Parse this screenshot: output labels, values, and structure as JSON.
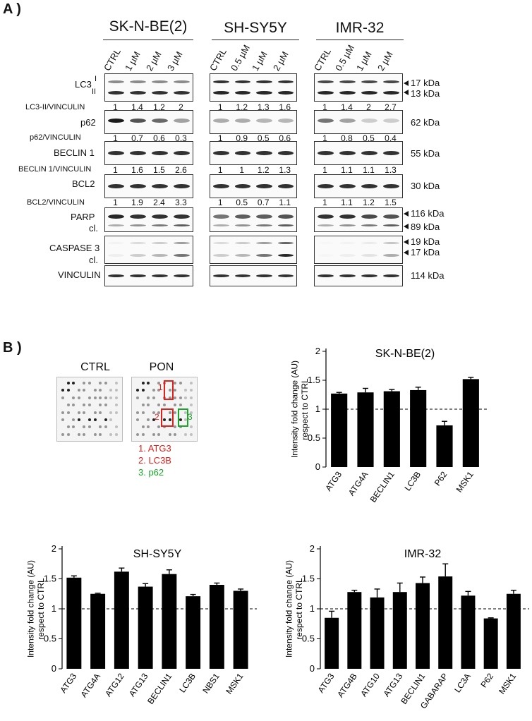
{
  "panelA": {
    "letter": "A )",
    "cells": [
      {
        "name": "SK-N-BE(2)",
        "lanes": [
          "CTRL",
          "1 µM",
          "2 µM",
          "3 µM"
        ]
      },
      {
        "name": "SH-SY5Y",
        "lanes": [
          "CTRL",
          "0.5 µM",
          "1 µM",
          "2 µM"
        ]
      },
      {
        "name": "IMR-32",
        "lanes": [
          "CTRL",
          "0.5 µM",
          "1 µM",
          "2 µM"
        ]
      }
    ],
    "rows": {
      "lc3": "LC3",
      "lc3_i": "I",
      "lc3_ii": "II",
      "p62": "p62",
      "beclin": "BECLIN 1",
      "bcl2": "BCL2",
      "parp": "PARP",
      "parp_cl": "cl.",
      "casp": "CASPASE 3",
      "casp_cl": "cl.",
      "vinculin": "VINCULIN"
    },
    "ratio_labels": {
      "lc3": "LC3-II/VINCULIN",
      "p62": "p62/VINCULIN",
      "beclin": "BECLIN 1/VINCULIN",
      "bcl2": "BCL2/VINCULIN"
    },
    "ratios": {
      "lc3": [
        [
          "1",
          "1.4",
          "1.2",
          "2"
        ],
        [
          "1",
          "1.2",
          "1.3",
          "1.6"
        ],
        [
          "1",
          "1.4",
          "2",
          "2.7"
        ]
      ],
      "p62": [
        [
          "1",
          "0.7",
          "0.6",
          "0.3"
        ],
        [
          "1",
          "0.9",
          "0.5",
          "0.6"
        ],
        [
          "1",
          "0.8",
          "0.5",
          "0.4"
        ]
      ],
      "beclin": [
        [
          "1",
          "1.6",
          "1.5",
          "2.6"
        ],
        [
          "1",
          "1",
          "1.2",
          "1.3"
        ],
        [
          "1",
          "1.1",
          "1.1",
          "1.3"
        ]
      ],
      "bcl2": [
        [
          "1",
          "1.9",
          "2.4",
          "3.3"
        ],
        [
          "1",
          "0.5",
          "0.7",
          "1.1"
        ],
        [
          "1",
          "1.1",
          "1.2",
          "1.5"
        ]
      ]
    },
    "kda": {
      "lc3_top": "17 kDa",
      "lc3_bot": "13 kDa",
      "p62": "62 kDa",
      "beclin": "55 kDa",
      "bcl2": "30 kDa",
      "parp_top": "116 kDa",
      "parp_bot": "89 kDa",
      "casp_top": "19 kDa",
      "casp_bot": "17 kDa",
      "vinculin": "114 kDa"
    }
  },
  "panelB": {
    "letter": "B )",
    "array_titles": [
      "CTRL",
      "PON"
    ],
    "marker_numbers": [
      "1",
      "2",
      "3"
    ],
    "legend": [
      "1. ATG3",
      "2. LC3B",
      "3. p62"
    ],
    "colors": {
      "red": "#e0201b",
      "green": "#1aa62a",
      "bar": "#000000"
    }
  },
  "chart_data": [
    {
      "type": "bar",
      "title": "SK-N-BE(2)",
      "ylabel": "Intensity fold change (AU) respect to CTRL",
      "ylim": [
        0,
        2
      ],
      "yticks": [
        "0",
        "0.5",
        "1",
        "1.5",
        "2"
      ],
      "reference_line": 1,
      "categories": [
        "ATG3",
        "ATG4A",
        "BECLIN1",
        "LC3B",
        "P62",
        "MSK1"
      ],
      "values": [
        1.27,
        1.29,
        1.31,
        1.33,
        0.72,
        1.52
      ],
      "errors": [
        0.02,
        0.07,
        0.03,
        0.05,
        0.07,
        0.03
      ]
    },
    {
      "type": "bar",
      "title": "SH-SY5Y",
      "ylabel": "Intensity fold change (AU) respect to CTRL",
      "ylim": [
        0,
        2
      ],
      "yticks": [
        "0",
        "0.5",
        "1",
        "1.5",
        "2"
      ],
      "reference_line": 1,
      "categories": [
        "ATG3",
        "ATG4A",
        "ATG12",
        "ATG13",
        "BECLIN1",
        "LC3B",
        "NBS1",
        "MSK1"
      ],
      "values": [
        1.52,
        1.25,
        1.62,
        1.37,
        1.58,
        1.21,
        1.4,
        1.3
      ],
      "errors": [
        0.03,
        0.01,
        0.06,
        0.05,
        0.07,
        0.03,
        0.03,
        0.03
      ]
    },
    {
      "type": "bar",
      "title": "IMR-32",
      "ylabel": "Intensity fold change (AU) respect to CTRL",
      "ylim": [
        0,
        2
      ],
      "yticks": [
        "0",
        "0.5",
        "1",
        "1.5",
        "2"
      ],
      "reference_line": 1,
      "categories": [
        "ATG3",
        "ATG4B",
        "ATG10",
        "ATG13",
        "BECLIN1",
        "GABARAP",
        "LC3A",
        "P62",
        "MSK1"
      ],
      "values": [
        0.85,
        1.28,
        1.19,
        1.28,
        1.43,
        1.54,
        1.22,
        0.84,
        1.25
      ],
      "errors": [
        0.11,
        0.03,
        0.14,
        0.15,
        0.1,
        0.21,
        0.07,
        0.01,
        0.06
      ]
    }
  ]
}
